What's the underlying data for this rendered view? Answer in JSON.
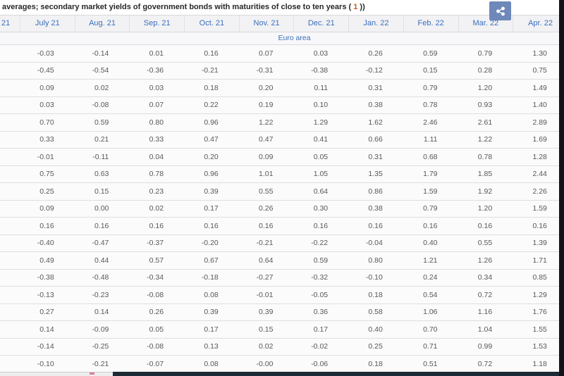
{
  "titlebar": {
    "title_prefix": "averages; secondary market yields of government bonds with maturities of close to ten years ( ",
    "footnote_ref": "1",
    "title_suffix": " ))"
  },
  "share": {
    "icon": "share-icon"
  },
  "colors": {
    "header_text_blue": "#3a6fbe",
    "footnote_orange": "#c9591b",
    "share_button_blue": "#6f88ba",
    "header_bg": "#f2f2f4",
    "row_bg": "#fbfbfc",
    "data_text": "#57585c",
    "bottom_dark_bar": "#1c2b35",
    "right_edge_strip": "#121318",
    "pink_marker": "#df7d95"
  },
  "table": {
    "columns": [
      "21",
      "July 21",
      "Aug. 21",
      "Sep. 21",
      "Oct. 21",
      "Nov. 21",
      "Dec. 21",
      "Jan. 22",
      "Feb. 22",
      "Mar. 22",
      "Apr. 22"
    ],
    "section_label": "Euro area",
    "rows": [
      [
        "-0.03",
        "-0.14",
        "0.01",
        "0.16",
        "0.07",
        "0.03",
        "0.26",
        "0.59",
        "0.79",
        "1.30"
      ],
      [
        "-0.45",
        "-0.54",
        "-0.36",
        "-0.21",
        "-0.31",
        "-0.38",
        "-0.12",
        "0.15",
        "0.28",
        "0.75"
      ],
      [
        "0.09",
        "0.02",
        "0.03",
        "0.18",
        "0.20",
        "0.11",
        "0.31",
        "0.79",
        "1.20",
        "1.49"
      ],
      [
        "0.03",
        "-0.08",
        "0.07",
        "0.22",
        "0.19",
        "0.10",
        "0.38",
        "0.78",
        "0.93",
        "1.40"
      ],
      [
        "0.70",
        "0.59",
        "0.80",
        "0.96",
        "1.22",
        "1.29",
        "1.62",
        "2.46",
        "2.61",
        "2.89"
      ],
      [
        "0.33",
        "0.21",
        "0.33",
        "0.47",
        "0.47",
        "0.41",
        "0.66",
        "1.11",
        "1.22",
        "1.69"
      ],
      [
        "-0.01",
        "-0.11",
        "0.04",
        "0.20",
        "0.09",
        "0.05",
        "0.31",
        "0.68",
        "0.78",
        "1.28"
      ],
      [
        "0.75",
        "0.63",
        "0.78",
        "0.96",
        "1.01",
        "1.05",
        "1.35",
        "1.79",
        "1.85",
        "2.44"
      ],
      [
        "0.25",
        "0.15",
        "0.23",
        "0.39",
        "0.55",
        "0.64",
        "0.86",
        "1.59",
        "1.92",
        "2.26"
      ],
      [
        "0.09",
        "0.00",
        "0.02",
        "0.17",
        "0.26",
        "0.30",
        "0.38",
        "0.79",
        "1.20",
        "1.59"
      ],
      [
        "0.16",
        "0.16",
        "0.16",
        "0.16",
        "0.16",
        "0.16",
        "0.16",
        "0.16",
        "0.16",
        "0.16"
      ],
      [
        "-0.40",
        "-0.47",
        "-0.37",
        "-0.20",
        "-0.21",
        "-0.22",
        "-0.04",
        "0.40",
        "0.55",
        "1.39"
      ],
      [
        "0.49",
        "0.44",
        "0.57",
        "0.67",
        "0.64",
        "0.59",
        "0.80",
        "1.21",
        "1.26",
        "1.71"
      ],
      [
        "-0.38",
        "-0.48",
        "-0.34",
        "-0.18",
        "-0.27",
        "-0.32",
        "-0.10",
        "0.24",
        "0.34",
        "0.85"
      ],
      [
        "-0.13",
        "-0.23",
        "-0.08",
        "0.08",
        "-0.01",
        "-0.05",
        "0.18",
        "0.54",
        "0.72",
        "1.29"
      ],
      [
        "0.27",
        "0.14",
        "0.26",
        "0.39",
        "0.39",
        "0.36",
        "0.58",
        "1.06",
        "1.16",
        "1.76"
      ],
      [
        "0.14",
        "-0.09",
        "0.05",
        "0.17",
        "0.15",
        "0.17",
        "0.40",
        "0.70",
        "1.04",
        "1.55"
      ],
      [
        "-0.14",
        "-0.25",
        "-0.08",
        "0.13",
        "0.02",
        "-0.02",
        "0.25",
        "0.71",
        "0.99",
        "1.53"
      ],
      [
        "-0.10",
        "-0.21",
        "-0.07",
        "0.08",
        "-0.00",
        "-0.06",
        "0.18",
        "0.51",
        "0.72",
        "1.18"
      ]
    ]
  }
}
